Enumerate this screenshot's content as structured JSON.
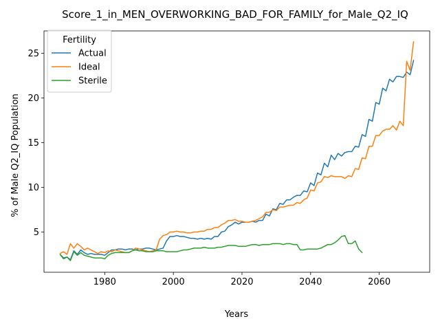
{
  "chart_data": {
    "type": "line",
    "title": "Score_1_in_MEN_OVERWORKING_BAD_FOR_FAMILY_for_Male_Q2_IQ",
    "xlabel": "Years",
    "ylabel": "% of Male Q2_IQ Population",
    "xlim": [
      1962.3,
      2074.7
    ],
    "ylim": [
      0.5,
      27.5
    ],
    "x_ticks": [
      1980,
      2000,
      2020,
      2040,
      2060
    ],
    "y_ticks": [
      5,
      10,
      15,
      20,
      25
    ],
    "grid": false,
    "legend": {
      "title": "Fertility",
      "position": "top-left"
    },
    "series": [
      {
        "name": "Actual",
        "color": "#1f77b4",
        "x": [
          1967,
          1968,
          1969,
          1970,
          1971,
          1972,
          1973,
          1974,
          1975,
          1976,
          1977,
          1978,
          1979,
          1980,
          1981,
          1982,
          1983,
          1984,
          1985,
          1986,
          1987,
          1988,
          1989,
          1990,
          1991,
          1992,
          1993,
          1994,
          1995,
          1996,
          1997,
          1998,
          1999,
          2000,
          2001,
          2002,
          2003,
          2004,
          2005,
          2006,
          2007,
          2008,
          2009,
          2010,
          2011,
          2012,
          2013,
          2014,
          2015,
          2016,
          2017,
          2018,
          2019,
          2020,
          2021,
          2022,
          2023,
          2024,
          2025,
          2026,
          2027,
          2028,
          2029,
          2030,
          2031,
          2032,
          2033,
          2034,
          2035,
          2036,
          2037,
          2038,
          2039,
          2040,
          2041,
          2042,
          2043,
          2044,
          2045,
          2046,
          2047,
          2048,
          2049,
          2050,
          2051,
          2052,
          2053,
          2054,
          2055,
          2056,
          2057,
          2058,
          2059,
          2060,
          2061,
          2062,
          2063,
          2064,
          2065,
          2066,
          2067,
          2068,
          2069,
          2070
        ],
        "values": [
          2.5,
          2.1,
          2.2,
          1.9,
          2.9,
          2.5,
          3.0,
          2.7,
          2.5,
          2.6,
          2.5,
          2.5,
          2.5,
          2.4,
          2.7,
          3.0,
          3.0,
          3.1,
          3.1,
          3.0,
          3.1,
          3.1,
          3.0,
          3.1,
          3.1,
          3.2,
          3.2,
          3.1,
          3.0,
          3.1,
          3.2,
          4.0,
          4.5,
          4.5,
          4.6,
          4.5,
          4.5,
          4.4,
          4.3,
          4.3,
          4.2,
          4.3,
          4.2,
          4.3,
          4.2,
          4.5,
          4.5,
          5.0,
          5.1,
          5.6,
          5.8,
          6.1,
          5.9,
          6.1,
          6.1,
          6.1,
          6.2,
          6.1,
          6.3,
          6.3,
          7.0,
          6.8,
          7.6,
          7.5,
          8.2,
          8.1,
          8.6,
          8.6,
          8.9,
          9.1,
          9.1,
          9.6,
          9.5,
          10.5,
          10.2,
          11.6,
          11.4,
          12.7,
          12.3,
          13.6,
          13.1,
          13.8,
          13.5,
          13.9,
          14.0,
          14.0,
          14.6,
          14.5,
          15.9,
          15.7,
          17.6,
          17.4,
          19.5,
          19.3,
          21.1,
          20.8,
          22.1,
          21.8,
          22.4,
          22.4,
          22.3,
          22.9,
          22.6,
          24.2
        ]
      },
      {
        "name": "Ideal",
        "color": "#ff7f0e",
        "x": [
          1967,
          1968,
          1969,
          1970,
          1971,
          1972,
          1973,
          1974,
          1975,
          1976,
          1977,
          1978,
          1979,
          1980,
          1981,
          1982,
          1983,
          1984,
          1985,
          1986,
          1987,
          1988,
          1989,
          1990,
          1991,
          1992,
          1993,
          1994,
          1995,
          1996,
          1997,
          1998,
          1999,
          2000,
          2001,
          2002,
          2003,
          2004,
          2005,
          2006,
          2007,
          2008,
          2009,
          2010,
          2011,
          2012,
          2013,
          2014,
          2015,
          2016,
          2017,
          2018,
          2019,
          2020,
          2021,
          2022,
          2023,
          2024,
          2025,
          2026,
          2027,
          2028,
          2029,
          2030,
          2031,
          2032,
          2033,
          2034,
          2035,
          2036,
          2037,
          2038,
          2039,
          2040,
          2041,
          2042,
          2043,
          2044,
          2045,
          2046,
          2047,
          2048,
          2049,
          2050,
          2051,
          2052,
          2053,
          2054,
          2055,
          2056,
          2057,
          2058,
          2059,
          2060,
          2061,
          2062,
          2063,
          2064,
          2065,
          2066,
          2067,
          2068,
          2069,
          2070
        ],
        "values": [
          2.6,
          2.8,
          2.5,
          3.7,
          3.2,
          3.7,
          3.4,
          3.0,
          3.2,
          3.0,
          2.8,
          2.6,
          2.8,
          2.7,
          2.9,
          2.8,
          3.0,
          2.9,
          2.8,
          2.7,
          2.7,
          2.9,
          3.2,
          3.1,
          3.0,
          2.9,
          2.8,
          2.9,
          3.0,
          4.2,
          4.6,
          4.7,
          5.0,
          5.0,
          5.1,
          5.0,
          5.0,
          4.9,
          4.9,
          5.0,
          5.0,
          5.1,
          5.1,
          5.3,
          5.3,
          5.5,
          5.5,
          5.8,
          6.0,
          6.3,
          6.3,
          6.4,
          6.2,
          6.2,
          6.1,
          6.1,
          6.2,
          6.3,
          6.5,
          6.7,
          7.2,
          7.2,
          7.5,
          7.4,
          7.8,
          7.8,
          7.9,
          8.0,
          8.0,
          8.3,
          8.2,
          8.6,
          8.8,
          9.7,
          9.6,
          10.5,
          10.6,
          11.2,
          11.1,
          11.3,
          11.2,
          11.2,
          11.2,
          11.0,
          11.3,
          11.2,
          12.1,
          12.0,
          13.3,
          13.2,
          14.6,
          14.6,
          15.8,
          15.8,
          16.3,
          16.5,
          16.5,
          16.9,
          16.4,
          17.4,
          16.9,
          24.1,
          23.1,
          26.3
        ]
      },
      {
        "name": "Sterile",
        "color": "#2ca02c",
        "x": [
          1967,
          1968,
          1969,
          1970,
          1971,
          1972,
          1973,
          1974,
          1975,
          1976,
          1977,
          1978,
          1979,
          1980,
          1981,
          1982,
          1983,
          1984,
          1985,
          1986,
          1987,
          1988,
          1989,
          1990,
          1991,
          1992,
          1993,
          1994,
          1995,
          1996,
          1997,
          1998,
          1999,
          2000,
          2001,
          2002,
          2003,
          2004,
          2005,
          2006,
          2007,
          2008,
          2009,
          2010,
          2011,
          2012,
          2013,
          2014,
          2015,
          2016,
          2017,
          2018,
          2019,
          2020,
          2021,
          2022,
          2023,
          2024,
          2025,
          2026,
          2027,
          2028,
          2029,
          2030,
          2031,
          2032,
          2033,
          2034,
          2035,
          2036,
          2037,
          2038,
          2039,
          2040,
          2041,
          2042,
          2043,
          2044,
          2045,
          2046,
          2047,
          2048,
          2049,
          2050,
          2051,
          2052,
          2053,
          2054,
          2055
        ],
        "values": [
          2.5,
          2.0,
          2.2,
          1.8,
          2.8,
          2.4,
          2.7,
          2.4,
          2.3,
          2.2,
          2.1,
          2.1,
          2.1,
          2.0,
          2.4,
          2.6,
          2.7,
          2.7,
          2.7,
          2.7,
          2.7,
          2.9,
          3.0,
          2.9,
          2.9,
          2.8,
          2.8,
          2.8,
          2.9,
          2.9,
          2.9,
          2.8,
          2.8,
          2.8,
          2.8,
          2.9,
          3.0,
          3.0,
          3.1,
          3.2,
          3.2,
          3.2,
          3.3,
          3.2,
          3.2,
          3.2,
          3.3,
          3.3,
          3.4,
          3.5,
          3.5,
          3.5,
          3.4,
          3.4,
          3.4,
          3.5,
          3.6,
          3.6,
          3.5,
          3.6,
          3.6,
          3.6,
          3.7,
          3.7,
          3.7,
          3.6,
          3.7,
          3.7,
          3.6,
          3.6,
          3.0,
          3.0,
          3.1,
          3.1,
          3.1,
          3.1,
          3.2,
          3.4,
          3.6,
          3.6,
          3.8,
          4.1,
          4.5,
          4.6,
          3.7,
          3.7,
          4.0,
          3.1,
          2.7
        ]
      }
    ]
  }
}
